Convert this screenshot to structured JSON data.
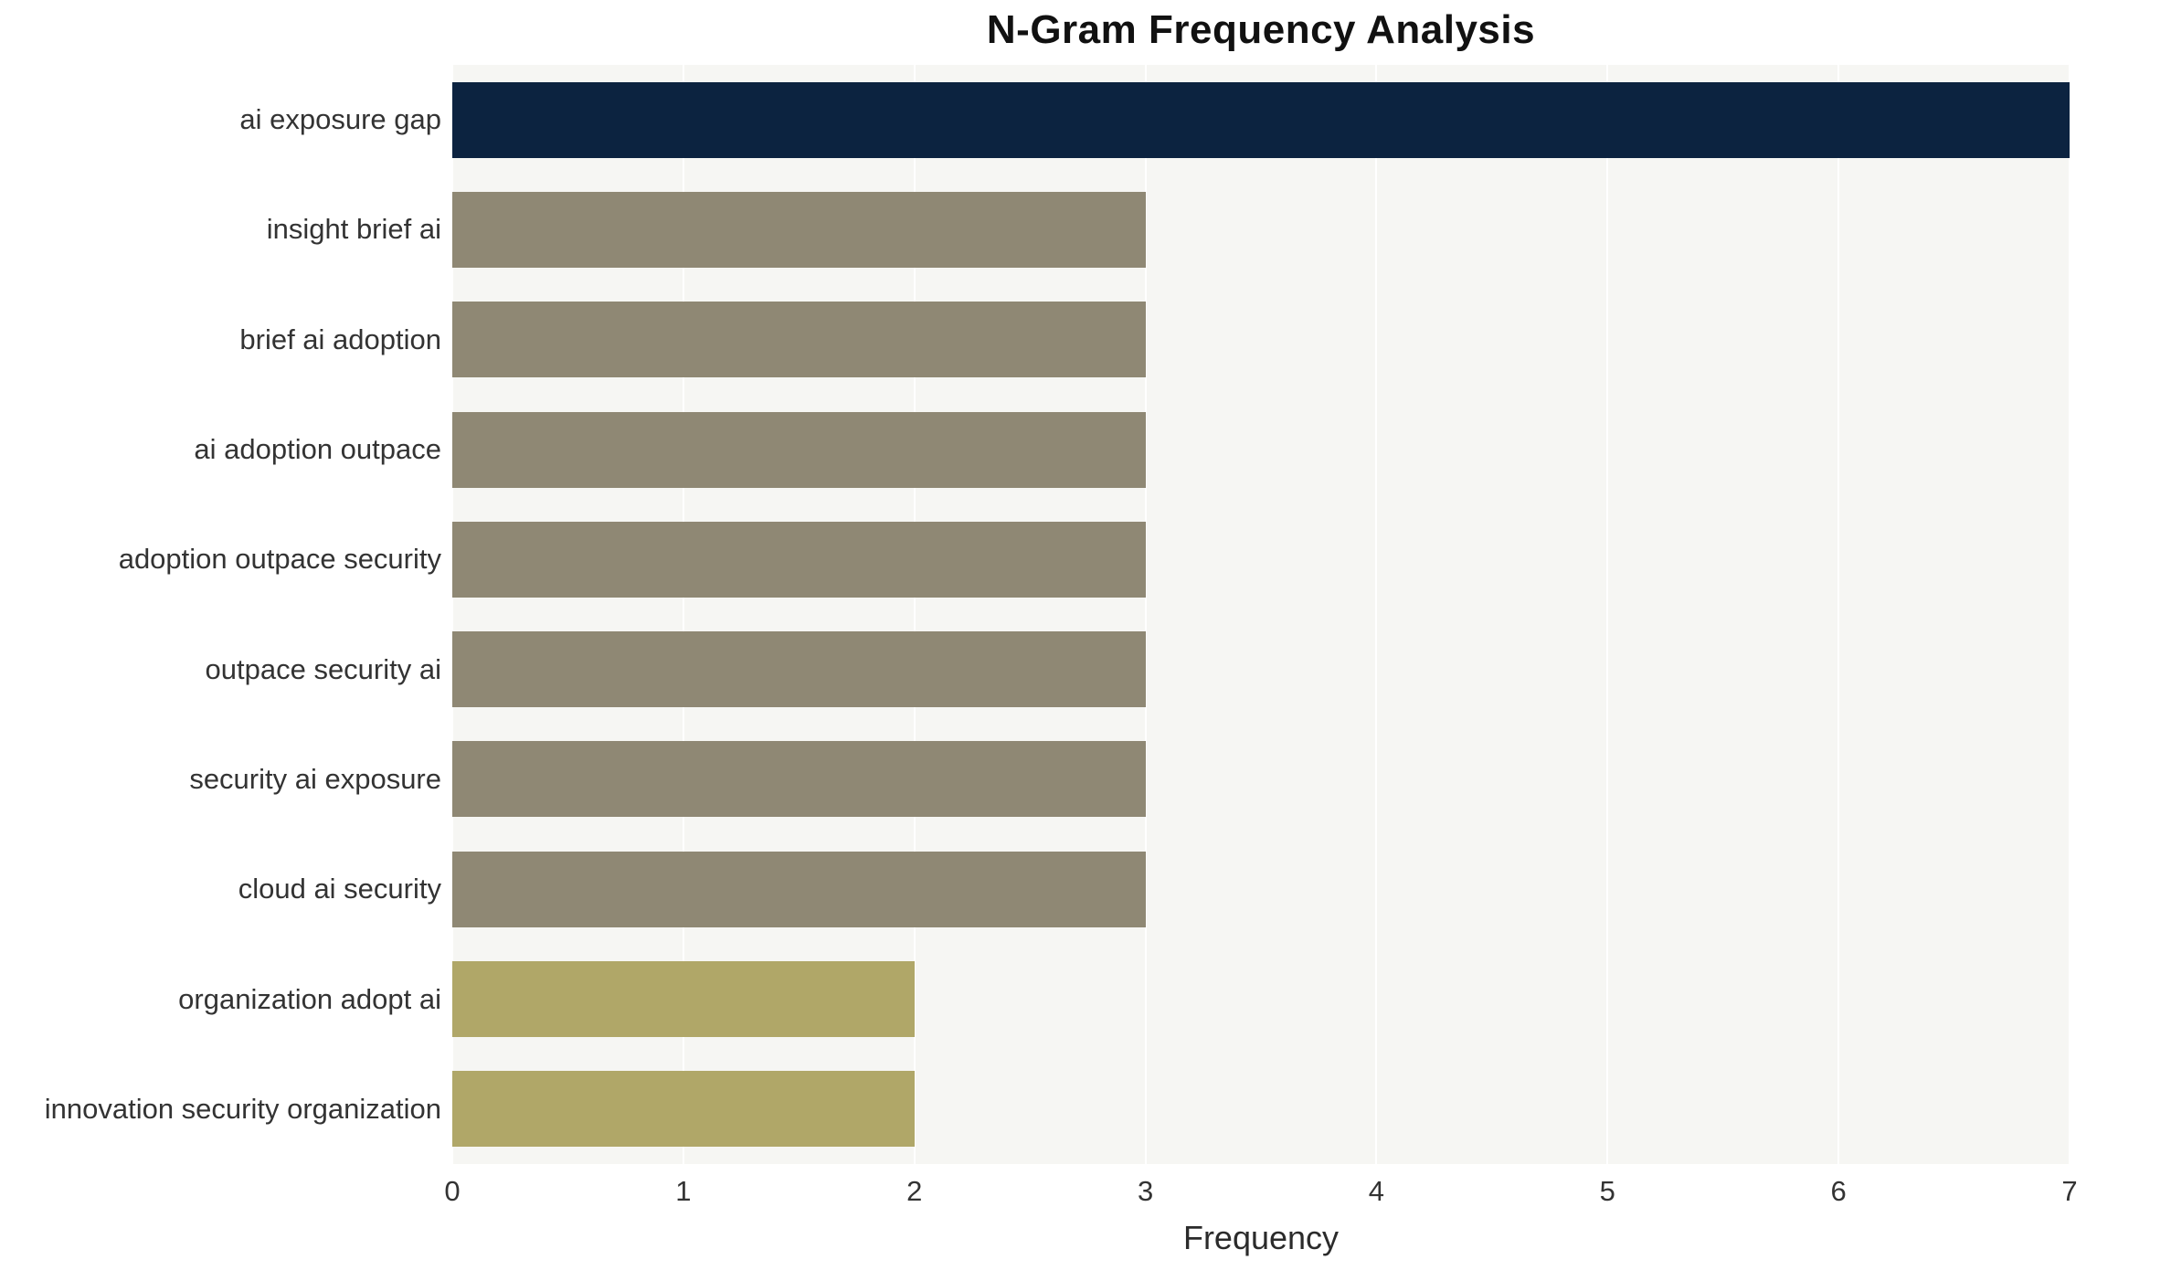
{
  "chart_data": {
    "type": "bar",
    "orientation": "horizontal",
    "title": "N-Gram Frequency Analysis",
    "xlabel": "Frequency",
    "ylabel": "",
    "categories": [
      "ai exposure gap",
      "insight brief ai",
      "brief ai adoption",
      "ai adoption outpace",
      "adoption outpace security",
      "outpace security ai",
      "security ai exposure",
      "cloud ai security",
      "organization adopt ai",
      "innovation security organization"
    ],
    "values": [
      7,
      3,
      3,
      3,
      3,
      3,
      3,
      3,
      2,
      2
    ],
    "bar_colors": [
      "#0c2340",
      "#8f8874",
      "#8f8874",
      "#8f8874",
      "#8f8874",
      "#8f8874",
      "#8f8874",
      "#8f8874",
      "#b0a768",
      "#b0a768"
    ],
    "xlim": [
      0,
      7
    ],
    "xticks": [
      0,
      1,
      2,
      3,
      4,
      5,
      6,
      7
    ],
    "grid": true,
    "legend_visible": false,
    "plot_bg": "#f6f6f3",
    "grid_color": "#ffffff",
    "text_color": "#333333"
  }
}
